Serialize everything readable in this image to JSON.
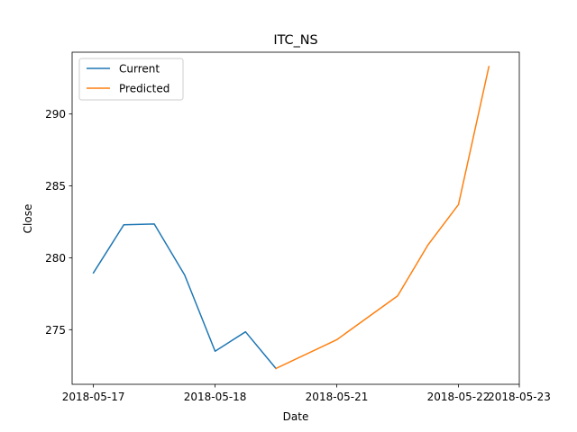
{
  "chart_data": {
    "type": "line",
    "title": "ITC_NS",
    "xlabel": "Date",
    "ylabel": "Close",
    "x_ticks": [
      "2018-05-17",
      "2018-05-18",
      "2018-05-21",
      "2018-05-22",
      "2018-05-23"
    ],
    "y_ticks": [
      "275",
      "280",
      "285",
      "290"
    ],
    "ylim": [
      271.2,
      294.3
    ],
    "grid": false,
    "legend_position": "top-left",
    "series": [
      {
        "name": "Current",
        "color": "#1f77b4",
        "points": [
          {
            "x": 0,
            "y": 278.95
          },
          {
            "x": 1,
            "y": 282.3
          },
          {
            "x": 2,
            "y": 282.35
          },
          {
            "x": 3,
            "y": 278.8
          },
          {
            "x": 4,
            "y": 273.5
          },
          {
            "x": 5,
            "y": 274.85
          },
          {
            "x": 6,
            "y": 272.3
          }
        ]
      },
      {
        "name": "Predicted",
        "color": "#ff7f0e",
        "points": [
          {
            "x": 6,
            "y": 272.3
          },
          {
            "x": 8,
            "y": 274.3
          },
          {
            "x": 10,
            "y": 277.35
          },
          {
            "x": 11,
            "y": 280.9
          },
          {
            "x": 12,
            "y": 283.7
          },
          {
            "x": 13,
            "y": 293.3
          }
        ]
      }
    ],
    "x_tick_positions": [
      0,
      4,
      8,
      12,
      14
    ]
  }
}
